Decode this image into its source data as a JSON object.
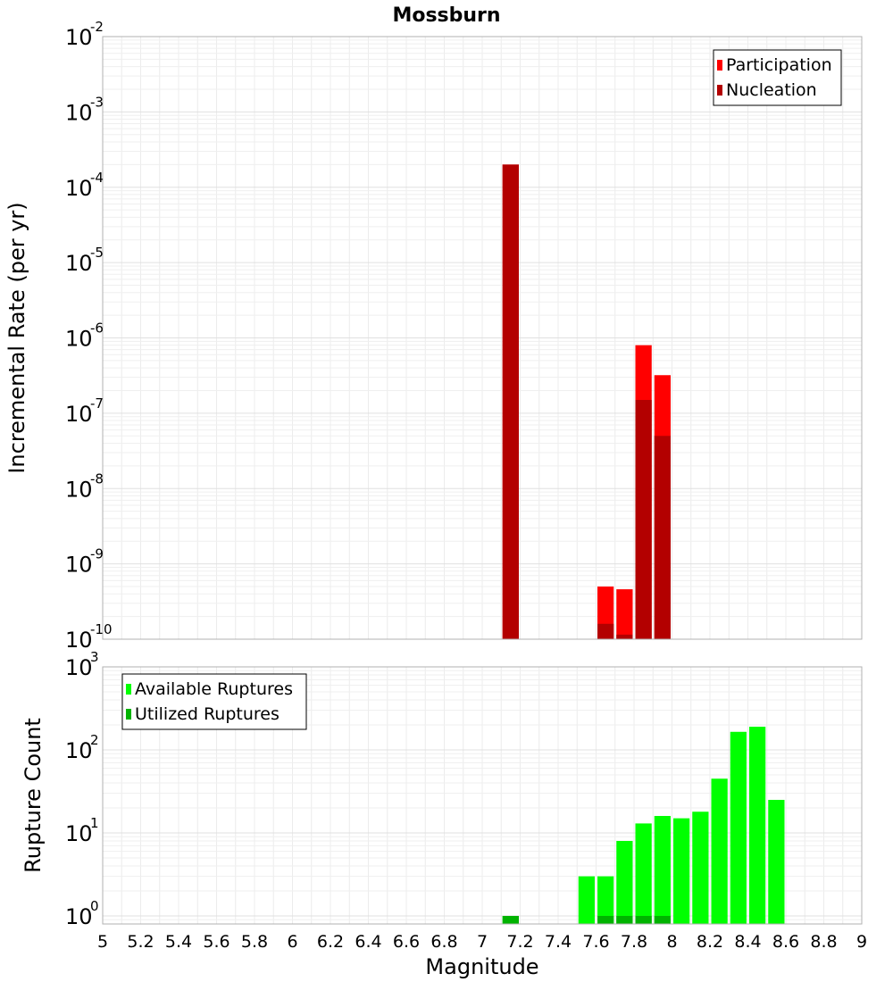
{
  "chart_data": [
    {
      "type": "bar",
      "title": "Mossburn",
      "xlabel": "",
      "ylabel": "Incremental Rate (per yr)",
      "xlim": [
        5,
        9
      ],
      "ylim": [
        1e-10,
        0.01
      ],
      "yscale": "log",
      "grid": true,
      "legend_position": "top-right",
      "ytick_labels": [
        {
          "base": "10",
          "exp": "-10"
        },
        {
          "base": "10",
          "exp": "-9"
        },
        {
          "base": "10",
          "exp": "-8"
        },
        {
          "base": "10",
          "exp": "-7"
        },
        {
          "base": "10",
          "exp": "-6"
        },
        {
          "base": "10",
          "exp": "-5"
        },
        {
          "base": "10",
          "exp": "-4"
        },
        {
          "base": "10",
          "exp": "-3"
        },
        {
          "base": "10",
          "exp": "-2"
        }
      ],
      "bin_width": 0.1,
      "series": [
        {
          "name": "Participation",
          "color": "#ff0000",
          "points": [
            {
              "x": 7.15,
              "y": 0.0002
            },
            {
              "x": 7.65,
              "y": 5e-10
            },
            {
              "x": 7.75,
              "y": 4.6e-10
            },
            {
              "x": 7.85,
              "y": 8e-07
            },
            {
              "x": 7.95,
              "y": 3.2e-07
            }
          ]
        },
        {
          "name": "Nucleation",
          "color": "#b30000",
          "points": [
            {
              "x": 7.15,
              "y": 0.0002
            },
            {
              "x": 7.65,
              "y": 1.6e-10
            },
            {
              "x": 7.75,
              "y": 1.15e-10
            },
            {
              "x": 7.85,
              "y": 1.5e-07
            },
            {
              "x": 7.95,
              "y": 5e-08
            }
          ]
        }
      ]
    },
    {
      "type": "bar",
      "title": "",
      "xlabel": "Magnitude",
      "ylabel": "Rupture Count",
      "xlim": [
        5,
        9
      ],
      "ylim": [
        0.8,
        1000
      ],
      "yscale": "log",
      "grid": true,
      "legend_position": "top-left",
      "ytick_labels": [
        {
          "base": "10",
          "exp": "0"
        },
        {
          "base": "10",
          "exp": "1"
        },
        {
          "base": "10",
          "exp": "2"
        },
        {
          "base": "10",
          "exp": "3"
        }
      ],
      "xtick_labels": [
        "5",
        "5.2",
        "5.4",
        "5.6",
        "5.8",
        "6",
        "6.2",
        "6.4",
        "6.6",
        "6.8",
        "7",
        "7.2",
        "7.4",
        "7.6",
        "7.8",
        "8",
        "8.2",
        "8.4",
        "8.6",
        "8.8",
        "9"
      ],
      "bin_width": 0.1,
      "series": [
        {
          "name": "Available Ruptures",
          "color": "#00ff00",
          "points": [
            {
              "x": 7.15,
              "y": 1
            },
            {
              "x": 7.55,
              "y": 3
            },
            {
              "x": 7.65,
              "y": 3
            },
            {
              "x": 7.75,
              "y": 8
            },
            {
              "x": 7.85,
              "y": 13
            },
            {
              "x": 7.95,
              "y": 16
            },
            {
              "x": 8.05,
              "y": 15
            },
            {
              "x": 8.15,
              "y": 18
            },
            {
              "x": 8.25,
              "y": 45
            },
            {
              "x": 8.35,
              "y": 165
            },
            {
              "x": 8.45,
              "y": 190
            },
            {
              "x": 8.55,
              "y": 25
            }
          ]
        },
        {
          "name": "Utilized Ruptures",
          "color": "#00b300",
          "points": [
            {
              "x": 7.15,
              "y": 1
            },
            {
              "x": 7.65,
              "y": 1
            },
            {
              "x": 7.75,
              "y": 1
            },
            {
              "x": 7.85,
              "y": 1
            },
            {
              "x": 7.95,
              "y": 1
            }
          ]
        }
      ]
    }
  ]
}
